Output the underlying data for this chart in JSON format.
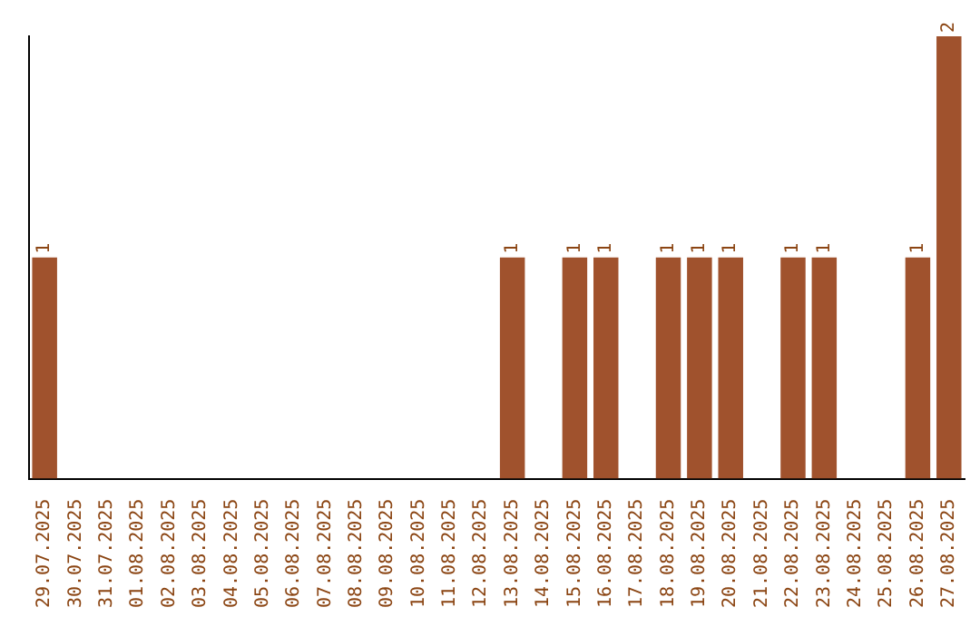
{
  "chart_data": {
    "type": "bar",
    "tick_labels": "x",
    "categories": [
      "29.07.2025",
      "30.07.2025",
      "31.07.2025",
      "01.08.2025",
      "02.08.2025",
      "03.08.2025",
      "04.08.2025",
      "05.08.2025",
      "06.08.2025",
      "07.08.2025",
      "08.08.2025",
      "09.08.2025",
      "10.08.2025",
      "11.08.2025",
      "12.08.2025",
      "13.08.2025",
      "14.08.2025",
      "15.08.2025",
      "16.08.2025",
      "17.08.2025",
      "18.08.2025",
      "19.08.2025",
      "20.08.2025",
      "21.08.2025",
      "22.08.2025",
      "23.08.2025",
      "24.08.2025",
      "25.08.2025",
      "26.08.2025",
      "27.08.2025"
    ],
    "values": [
      1,
      0,
      0,
      0,
      0,
      0,
      0,
      0,
      0,
      0,
      0,
      0,
      0,
      0,
      0,
      1,
      0,
      1,
      1,
      0,
      1,
      1,
      1,
      0,
      1,
      1,
      0,
      0,
      1,
      2
    ],
    "value_labels": [
      "1",
      null,
      null,
      null,
      null,
      null,
      null,
      null,
      null,
      null,
      null,
      null,
      null,
      null,
      null,
      "1",
      null,
      "1",
      "1",
      null,
      "1",
      "1",
      "1",
      null,
      "1",
      "1",
      null,
      null,
      "1",
      "2"
    ],
    "color": "#a0522d",
    "grid": false,
    "legend": false
  }
}
